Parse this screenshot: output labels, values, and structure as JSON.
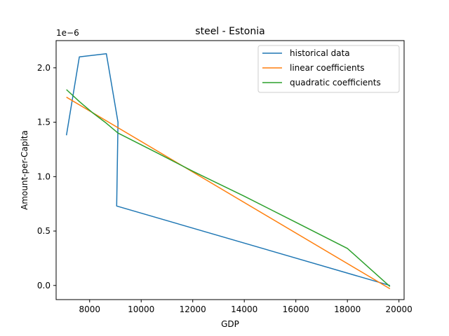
{
  "chart_data": {
    "type": "line",
    "title": "steel - Estonia",
    "xlabel": "GDP",
    "ylabel": "Amount-per-Capita",
    "y_offset_label": "1e−6",
    "xlim": [
      6700,
      20200
    ],
    "ylim": [
      -0.13,
      2.25
    ],
    "x_ticks": [
      8000,
      10000,
      12000,
      14000,
      16000,
      18000,
      20000
    ],
    "y_ticks": [
      0.0,
      0.5,
      1.0,
      1.5,
      2.0
    ],
    "x_tick_labels": [
      "8000",
      "10000",
      "12000",
      "14000",
      "16000",
      "18000",
      "20000"
    ],
    "y_tick_labels": [
      "0.0",
      "0.5",
      "1.0",
      "1.5",
      "2.0"
    ],
    "grid": false,
    "legend_position": "top-right",
    "series": [
      {
        "name": "historical data",
        "color": "#1f77b4",
        "points": [
          [
            7100,
            1.38
          ],
          [
            7600,
            2.1
          ],
          [
            8650,
            2.13
          ],
          [
            9100,
            1.5
          ],
          [
            9050,
            0.73
          ],
          [
            19650,
            0.0
          ]
        ]
      },
      {
        "name": "linear coefficients",
        "color": "#ff7f0e",
        "points": [
          [
            7100,
            1.73
          ],
          [
            19650,
            -0.03
          ]
        ]
      },
      {
        "name": "quadratic coefficients",
        "color": "#2ca02c",
        "points": [
          [
            7100,
            1.8
          ],
          [
            7600,
            1.69
          ],
          [
            8100,
            1.59
          ],
          [
            8600,
            1.5
          ],
          [
            9100,
            1.4
          ],
          [
            10600,
            1.22
          ],
          [
            12000,
            1.05
          ],
          [
            14000,
            0.82
          ],
          [
            16000,
            0.58
          ],
          [
            18000,
            0.34
          ],
          [
            19650,
            -0.01
          ]
        ]
      }
    ]
  }
}
